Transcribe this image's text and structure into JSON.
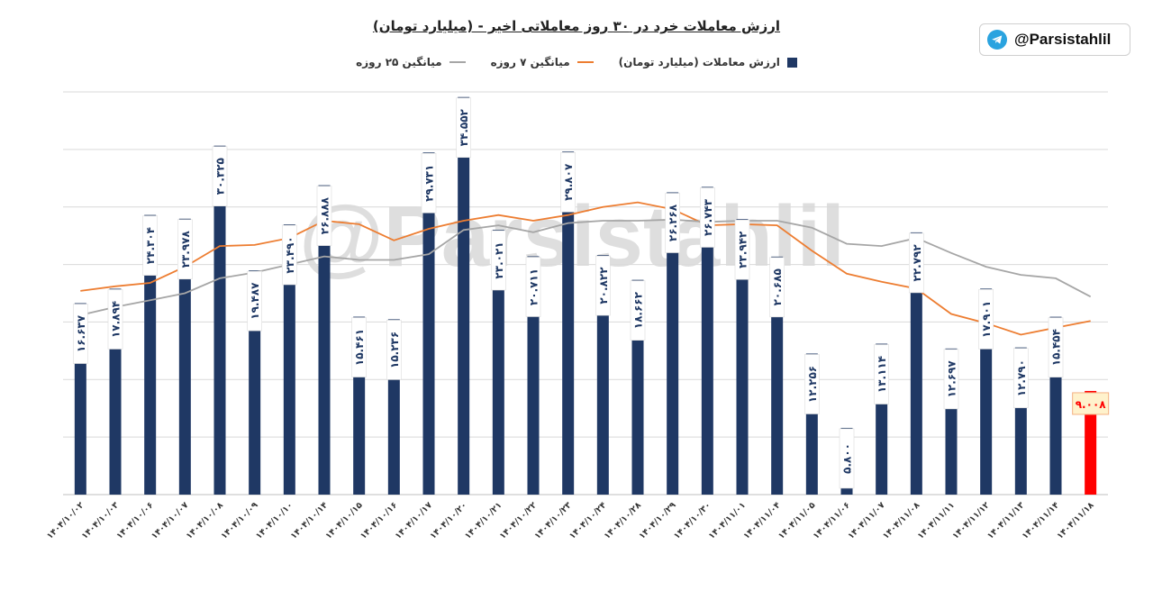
{
  "header": {
    "title": "ارزش معاملات خرد در ۳۰ روز معاملاتی اخیر - (میلیارد تومان)"
  },
  "badge": {
    "handle": "@Parsistahlil",
    "icon": "telegram-icon"
  },
  "watermark": "@Parsistahlil",
  "colors": {
    "bar": "#1f3864",
    "last_bar": "#ff0000",
    "ma7": "#ed7d31",
    "ma25": "#a6a6a6",
    "grid": "#d9d9d9"
  },
  "chart_data": {
    "type": "bar",
    "title": "ارزش معاملات خرد در ۳۰ روز معاملاتی اخیر - (میلیارد تومان)",
    "legend_position": "top",
    "grid": true,
    "ylim": [
      0,
      35
    ],
    "categories": [
      "۱۴۰۴/۱۰/۰۲",
      "۱۴۰۴/۱۰/۰۳",
      "۱۴۰۴/۱۰/۰۶",
      "۱۴۰۴/۱۰/۰۷",
      "۱۴۰۴/۱۰/۰۸",
      "۱۴۰۴/۱۰/۰۹",
      "۱۴۰۴/۱۰/۱۰",
      "۱۴۰۴/۱۰/۱۴",
      "۱۴۰۴/۱۰/۱۵",
      "۱۴۰۴/۱۰/۱۶",
      "۱۴۰۴/۱۰/۱۷",
      "۱۴۰۴/۱۰/۲۰",
      "۱۴۰۴/۱۰/۲۱",
      "۱۴۰۴/۱۰/۲۲",
      "۱۴۰۴/۱۰/۲۳",
      "۱۴۰۴/۱۰/۲۴",
      "۱۴۰۴/۱۰/۲۸",
      "۱۴۰۴/۱۰/۲۹",
      "۱۴۰۴/۱۰/۳۰",
      "۱۴۰۴/۱۱/۰۱",
      "۱۴۰۴/۱۱/۰۴",
      "۱۴۰۴/۱۱/۰۵",
      "۱۴۰۴/۱۱/۰۶",
      "۱۴۰۴/۱۱/۰۷",
      "۱۴۰۴/۱۱/۰۸",
      "۱۴۰۴/۱۱/۱۱",
      "۱۴۰۴/۱۱/۱۲",
      "۱۴۰۴/۱۱/۱۳",
      "۱۴۰۴/۱۱/۱۴",
      "۱۴۰۴/۱۱/۱۸"
    ],
    "series": [
      {
        "name": "ارزش معاملات (میلیارد تومان)",
        "type": "bar",
        "values": [
          16.637,
          17.894,
          24.304,
          23.978,
          30.325,
          19.487,
          23.49,
          26.888,
          15.461,
          15.236,
          29.731,
          34.552,
          23.021,
          20.711,
          29.807,
          20.822,
          18.662,
          26.268,
          26.743,
          23.942,
          20.685,
          12.256,
          5.8,
          13.114,
          22.792,
          12.697,
          17.901,
          12.79,
          15.454,
          9.008
        ],
        "labels": [
          "۱۶.۶۳۷",
          "۱۷.۸۹۴",
          "۲۴.۳۰۴",
          "۲۳.۹۷۸",
          "۳۰.۳۲۵",
          "۱۹.۴۸۷",
          "۲۳.۴۹۰",
          "۲۶.۸۸۸",
          "۱۵.۴۶۱",
          "۱۵.۲۳۶",
          "۲۹.۷۳۱",
          "۳۴.۵۵۲",
          "۲۳.۰۲۱",
          "۲۰.۷۱۱",
          "۲۹.۸۰۷",
          "۲۰.۸۲۲",
          "۱۸.۶۶۲",
          "۲۶.۲۶۸",
          "۲۶.۷۴۳",
          "۲۳.۹۴۲",
          "۲۰.۶۸۵",
          "۱۲.۲۵۶",
          "۵.۸۰۰",
          "۱۳.۱۱۴",
          "۲۲.۷۹۲",
          "۱۲.۶۹۷",
          "۱۷.۹۰۱",
          "۱۲.۷۹۰",
          "۱۵.۴۵۴",
          "۹.۰۰۸"
        ]
      },
      {
        "name": "میانگین ۷ روزه",
        "type": "line",
        "values": [
          17.7,
          18.1,
          18.4,
          19.8,
          21.6,
          21.7,
          22.3,
          23.8,
          23.5,
          22.1,
          23.1,
          23.8,
          24.3,
          23.8,
          24.3,
          25.0,
          25.4,
          24.8,
          23.4,
          23.5,
          23.4,
          21.2,
          19.2,
          18.5,
          17.9,
          15.7,
          14.9,
          13.9,
          14.5,
          15.1
        ]
      },
      {
        "name": "میانگین ۲۵ روزه",
        "type": "line",
        "values": [
          15.6,
          16.3,
          16.9,
          17.5,
          18.8,
          19.3,
          20.0,
          20.7,
          20.4,
          20.4,
          20.9,
          23.0,
          23.4,
          22.8,
          23.6,
          23.8,
          23.8,
          23.9,
          23.7,
          23.8,
          23.8,
          23.2,
          21.8,
          21.6,
          22.3,
          21.0,
          19.8,
          19.1,
          18.8,
          17.2
        ]
      }
    ]
  }
}
